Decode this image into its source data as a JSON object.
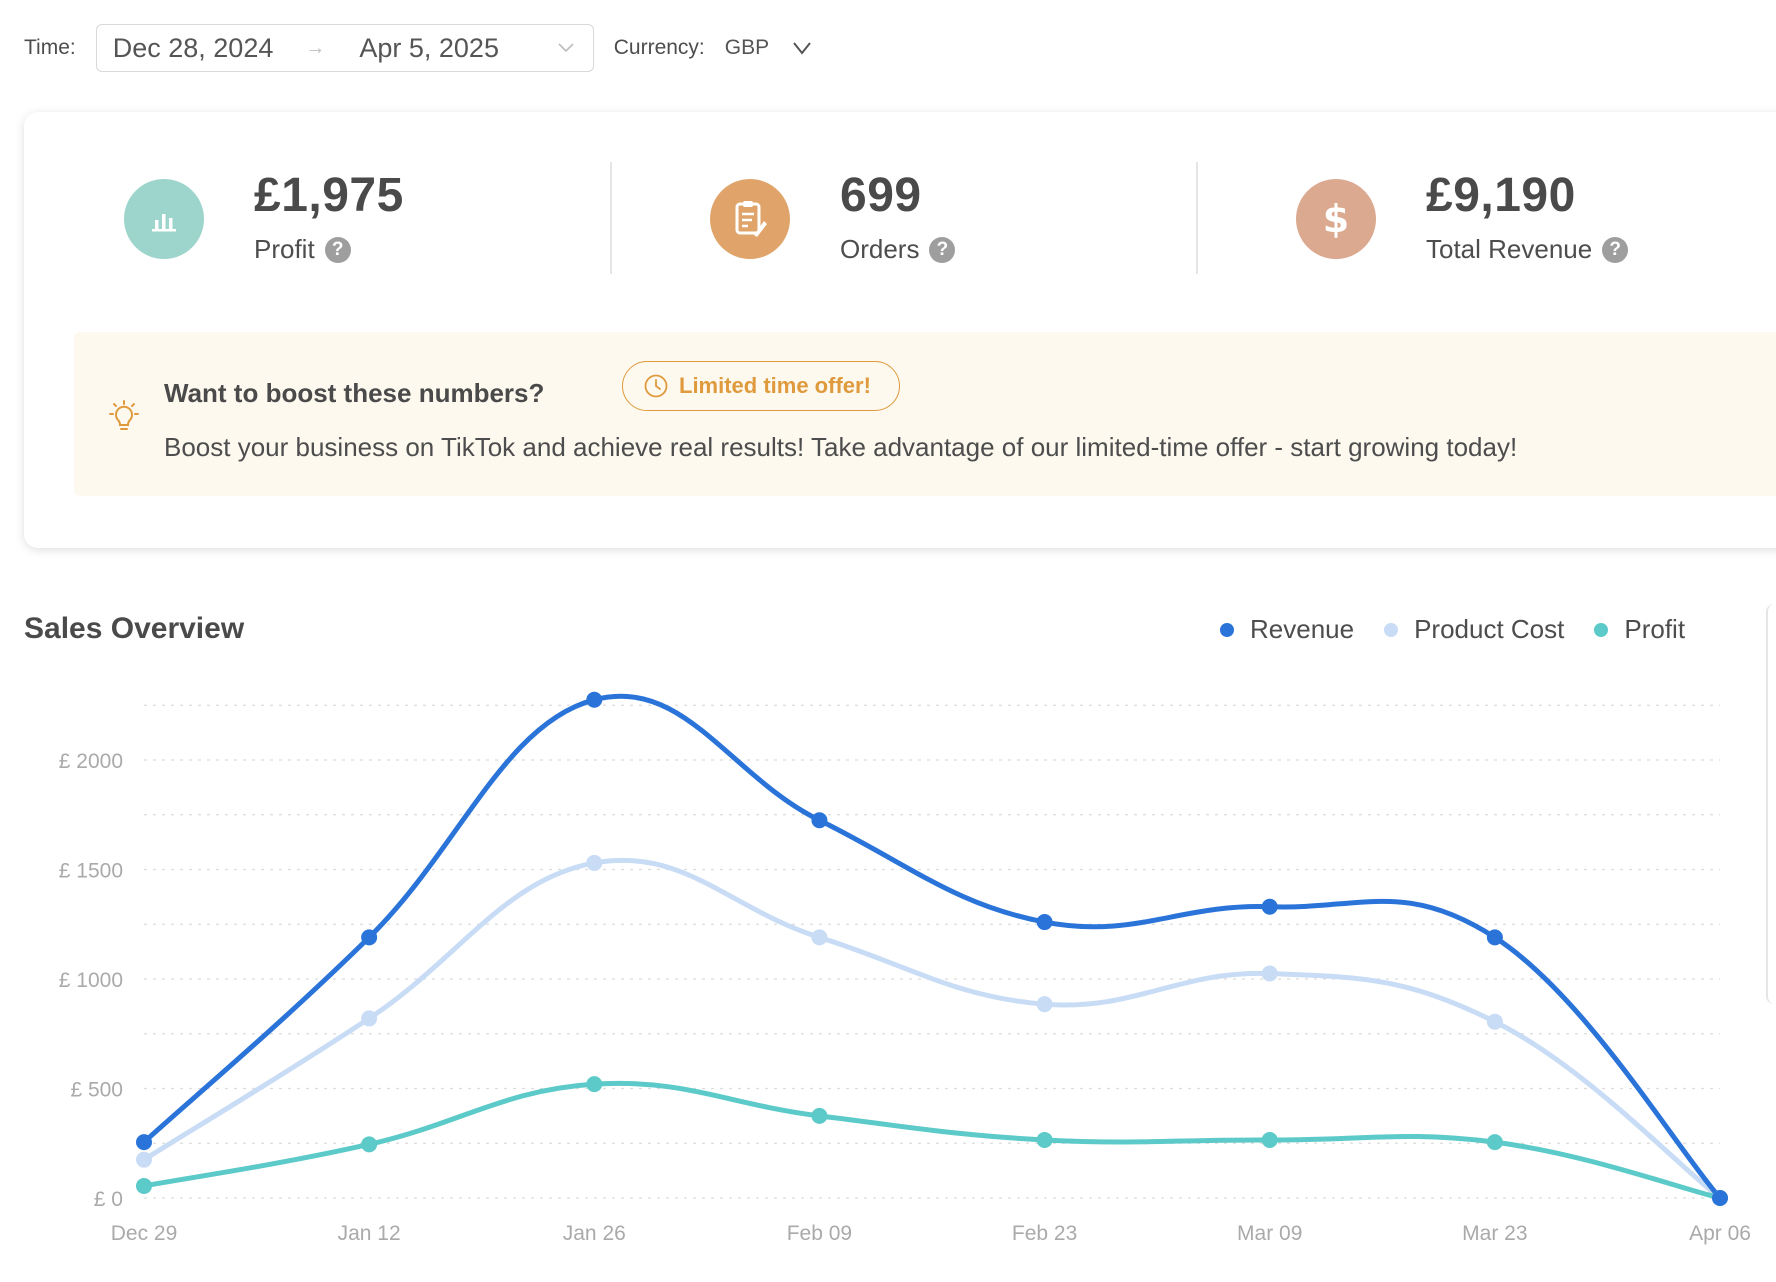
{
  "filters": {
    "time_label": "Time:",
    "date_start": "Dec 28, 2024",
    "date_arrow": "→",
    "date_end": "Apr 5, 2025",
    "currency_label": "Currency:",
    "currency_value": "GBP"
  },
  "stats": [
    {
      "value": "£1,975",
      "label": "Profit",
      "icon": "bar-chart-icon",
      "color": "#9dd4cc"
    },
    {
      "value": "699",
      "label": "Orders",
      "icon": "clipboard-icon",
      "color": "#e0a46a"
    },
    {
      "value": "£9,190",
      "label": "Total Revenue",
      "icon": "dollar-icon",
      "color": "#dba98f"
    }
  ],
  "help_glyph": "?",
  "promo": {
    "title": "Want to boost these numbers?",
    "badge": "Limited time offer!",
    "description": "Boost your business on TikTok and achieve real results! Take advantage of our limited-time offer - start growing today!"
  },
  "chart_section": {
    "title": "Sales Overview"
  },
  "chart_data": {
    "type": "line",
    "categories": [
      "Dec 29",
      "Jan 12",
      "Jan 26",
      "Feb 09",
      "Feb 23",
      "Mar 09",
      "Mar 23",
      "Apr 06"
    ],
    "series": [
      {
        "name": "Revenue",
        "color": "#2a74d9",
        "values": [
          255,
          1190,
          2275,
          1725,
          1260,
          1330,
          1190,
          0
        ]
      },
      {
        "name": "Product Cost",
        "color": "#c8dcf5",
        "values": [
          175,
          820,
          1530,
          1190,
          885,
          1025,
          805,
          0
        ]
      },
      {
        "name": "Profit",
        "color": "#5ccac8",
        "values": [
          55,
          245,
          520,
          375,
          265,
          265,
          255,
          0
        ]
      }
    ],
    "y_ticks": [
      "£ 0",
      "£ 500",
      "£ 1000",
      "£ 1500",
      "£ 2000"
    ],
    "y_tick_values": [
      0,
      500,
      1000,
      1500,
      2000
    ],
    "ylim": [
      0,
      2300
    ],
    "grid": true,
    "legend_position": "top-right"
  }
}
